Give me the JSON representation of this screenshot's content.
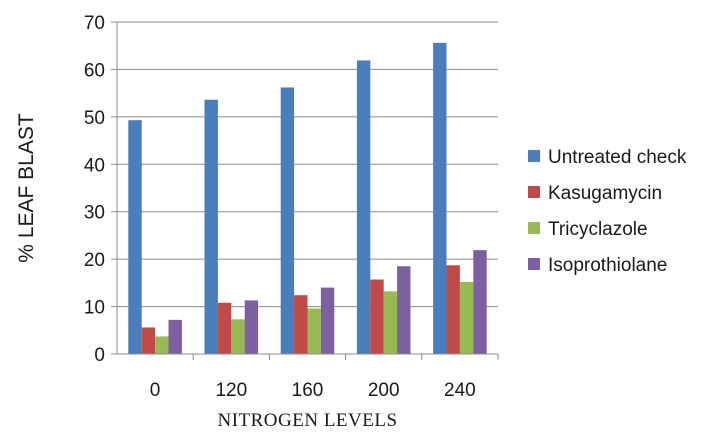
{
  "chart_data": {
    "type": "bar",
    "categories": [
      "0",
      "120",
      "160",
      "200",
      "240"
    ],
    "series": [
      {
        "name": "Untreated check",
        "color": "#4a7ebb",
        "values": [
          49.3,
          53.6,
          56.2,
          61.9,
          65.6
        ]
      },
      {
        "name": "Kasugamycin",
        "color": "#be4b48",
        "values": [
          5.6,
          10.8,
          12.4,
          15.7,
          18.7
        ]
      },
      {
        "name": "Tricyclazole",
        "color": "#98b954",
        "values": [
          3.7,
          7.3,
          9.6,
          13.2,
          15.2
        ]
      },
      {
        "name": "Isoprothiolane",
        "color": "#7d60a0",
        "values": [
          7.2,
          11.3,
          14.0,
          18.5,
          21.9
        ]
      }
    ],
    "xlabel": "NITROGEN LEVELS",
    "ylabel": "% LEAF BLAST",
    "ylim": [
      0,
      70
    ],
    "yticks": [
      0,
      10,
      20,
      30,
      40,
      50,
      60,
      70
    ],
    "grid": true,
    "legend_position": "right"
  }
}
